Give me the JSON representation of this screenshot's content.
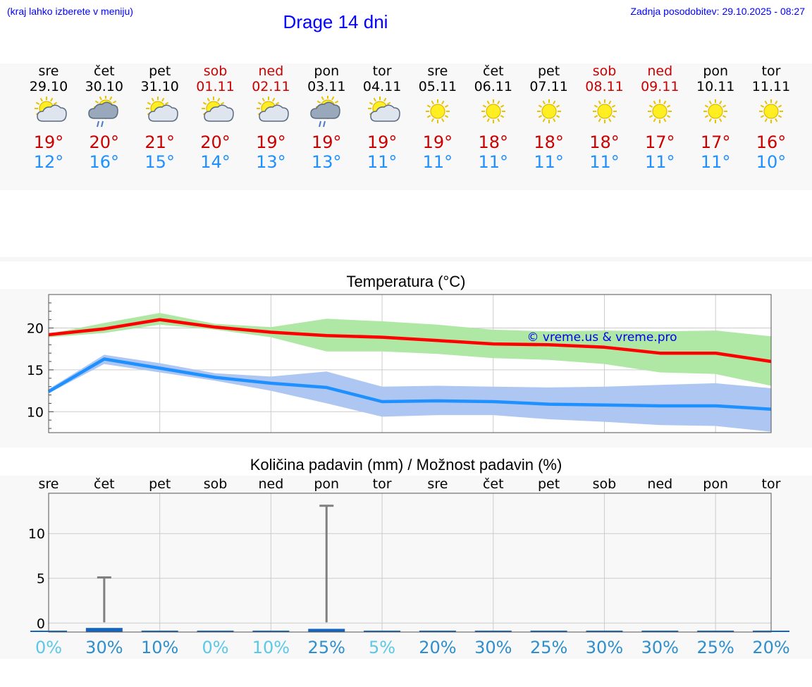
{
  "header": {
    "hint": "(kraj lahko izberete v meniju)",
    "title": "Drage 14 dni",
    "updated": "Zadnja posodobitev: 29.10.2025 - 08:27"
  },
  "days": [
    {
      "name": "sre",
      "date": "29.10",
      "weekend": false,
      "icon": "sun-cloud-icon",
      "max": "19°",
      "min": "12°"
    },
    {
      "name": "čet",
      "date": "30.10",
      "weekend": false,
      "icon": "sun-cloud-rain-icon",
      "max": "20°",
      "min": "16°"
    },
    {
      "name": "pet",
      "date": "31.10",
      "weekend": false,
      "icon": "sun-cloud-icon",
      "max": "21°",
      "min": "15°"
    },
    {
      "name": "sob",
      "date": "01.11",
      "weekend": true,
      "icon": "sun-cloud-icon",
      "max": "20°",
      "min": "14°"
    },
    {
      "name": "ned",
      "date": "02.11",
      "weekend": true,
      "icon": "sun-cloud-icon",
      "max": "19°",
      "min": "13°"
    },
    {
      "name": "pon",
      "date": "03.11",
      "weekend": false,
      "icon": "sun-cloud-rain-icon",
      "max": "19°",
      "min": "13°"
    },
    {
      "name": "tor",
      "date": "04.11",
      "weekend": false,
      "icon": "sun-cloud-icon",
      "max": "19°",
      "min": "11°"
    },
    {
      "name": "sre",
      "date": "05.11",
      "weekend": false,
      "icon": "sun-icon",
      "max": "19°",
      "min": "11°"
    },
    {
      "name": "čet",
      "date": "06.11",
      "weekend": false,
      "icon": "sun-icon",
      "max": "18°",
      "min": "11°"
    },
    {
      "name": "pet",
      "date": "07.11",
      "weekend": false,
      "icon": "sun-icon",
      "max": "18°",
      "min": "11°"
    },
    {
      "name": "sob",
      "date": "08.11",
      "weekend": true,
      "icon": "sun-icon",
      "max": "18°",
      "min": "11°"
    },
    {
      "name": "ned",
      "date": "09.11",
      "weekend": true,
      "icon": "sun-icon",
      "max": "17°",
      "min": "11°"
    },
    {
      "name": "pon",
      "date": "10.11",
      "weekend": false,
      "icon": "sun-icon",
      "max": "17°",
      "min": "11°"
    },
    {
      "name": "tor",
      "date": "11.11",
      "weekend": false,
      "icon": "sun-icon",
      "max": "16°",
      "min": "10°"
    }
  ],
  "chart_data": [
    {
      "type": "line",
      "title": "Temperatura (°C)",
      "ylabel": "°C",
      "ylim": [
        7.5,
        24
      ],
      "yticks": [
        10,
        15,
        20
      ],
      "watermark": "© vreme.us & vreme.pro",
      "x": [
        0,
        1,
        2,
        3,
        4,
        5,
        6,
        7,
        8,
        9,
        10,
        11,
        12,
        13
      ],
      "series": [
        {
          "name": "max",
          "color": "#ff0000",
          "values": [
            19.2,
            19.9,
            21.0,
            20.1,
            19.5,
            19.1,
            18.9,
            18.5,
            18.1,
            18.0,
            17.7,
            17.0,
            17.0,
            16.0
          ],
          "band_low": [
            18.9,
            19.4,
            20.4,
            19.8,
            18.9,
            17.2,
            17.2,
            16.9,
            16.4,
            16.2,
            15.7,
            14.7,
            14.5,
            13.1
          ],
          "band_high": [
            19.3,
            20.6,
            21.8,
            20.5,
            20.1,
            21.1,
            20.8,
            20.4,
            19.8,
            19.6,
            19.7,
            19.6,
            19.7,
            19.0
          ],
          "band_color": "#aee8a4"
        },
        {
          "name": "min",
          "color": "#1e90ff",
          "values": [
            12.4,
            16.3,
            15.2,
            14.1,
            13.4,
            12.9,
            11.2,
            11.3,
            11.2,
            10.9,
            10.8,
            10.7,
            10.7,
            10.3
          ],
          "band_low": [
            12.2,
            15.7,
            14.7,
            13.7,
            12.5,
            11.0,
            9.4,
            9.6,
            9.6,
            9.1,
            8.8,
            8.4,
            8.3,
            7.6
          ],
          "band_high": [
            12.7,
            16.8,
            15.8,
            14.6,
            14.2,
            14.8,
            13.0,
            13.1,
            13.0,
            12.9,
            13.0,
            13.2,
            13.4,
            12.8
          ],
          "band_color": "#adc6f2"
        }
      ]
    },
    {
      "type": "bar",
      "title": "Količina padavin (mm) / Možnost padavin (%)",
      "categories": [
        "sre",
        "čet",
        "pet",
        "sob",
        "ned",
        "pon",
        "tor",
        "sre",
        "čet",
        "pet",
        "sob",
        "ned",
        "pon",
        "tor"
      ],
      "ylim": [
        -1,
        14.5
      ],
      "yticks": [
        0,
        5,
        10
      ],
      "series": [
        {
          "name": "precipitation_mm",
          "color": "#1565c0",
          "values": [
            0,
            0.3,
            0,
            0,
            0,
            0.2,
            0,
            0,
            0,
            0,
            0,
            0,
            0,
            0
          ]
        },
        {
          "name": "precipitation_max_mm",
          "color": "#808080",
          "values": [
            0,
            5.1,
            0,
            0,
            0,
            13.1,
            0,
            0,
            0,
            0,
            0,
            0,
            0,
            0
          ]
        }
      ],
      "probability": [
        "0%",
        "30%",
        "10%",
        "0%",
        "10%",
        "25%",
        "5%",
        "20%",
        "30%",
        "25%",
        "30%",
        "30%",
        "25%",
        "20%"
      ],
      "probability_colors": [
        "#5bc8e8",
        "#2e8fcc",
        "#2e8fcc",
        "#5bc8e8",
        "#5bc8e8",
        "#2e8fcc",
        "#5bc8e8",
        "#2e8fcc",
        "#2e8fcc",
        "#2e8fcc",
        "#2e8fcc",
        "#2e8fcc",
        "#2e8fcc",
        "#2e8fcc"
      ]
    }
  ]
}
